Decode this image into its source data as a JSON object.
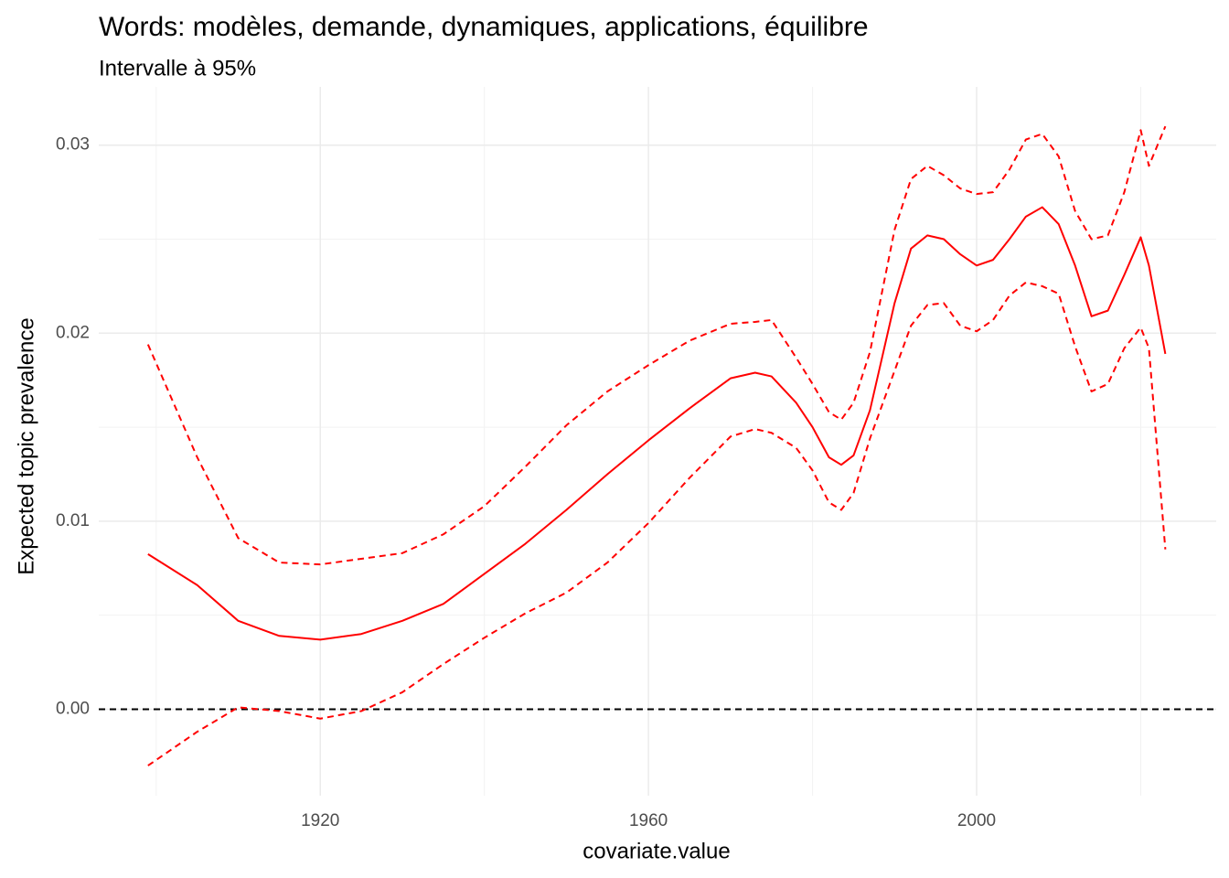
{
  "chart_data": {
    "type": "line",
    "title": "Words: modèles, demande, dynamiques, applications, équilibre",
    "subtitle": "Intervalle à 95%",
    "x_label": "covariate.value",
    "y_label": "Expected topic prevalence",
    "x": [
      1899,
      1905,
      1910,
      1915,
      1920,
      1925,
      1930,
      1935,
      1940,
      1945,
      1950,
      1955,
      1960,
      1965,
      1970,
      1973,
      1975,
      1978,
      1980,
      1982,
      1983.5,
      1985,
      1987,
      1990,
      1992,
      1994,
      1996,
      1998,
      2000,
      2002,
      2004,
      2006,
      2008,
      2010,
      2012,
      2014,
      2016,
      2018,
      2020,
      2021,
      2023
    ],
    "series": [
      {
        "color": "#ff0000",
        "dashed": false,
        "values": [
          0.00825,
          0.0066,
          0.0047,
          0.0039,
          0.0037,
          0.004,
          0.0047,
          0.0056,
          0.0072,
          0.0088,
          0.0106,
          0.0125,
          0.0143,
          0.016,
          0.0176,
          0.0179,
          0.0177,
          0.0163,
          0.015,
          0.0134,
          0.013,
          0.0135,
          0.0159,
          0.0216,
          0.0245,
          0.0252,
          0.025,
          0.0242,
          0.0236,
          0.0239,
          0.025,
          0.0262,
          0.0267,
          0.0258,
          0.0236,
          0.0209,
          0.0212,
          0.0231,
          0.0251,
          0.0236,
          0.0189
        ]
      },
      {
        "color": "#ff0000",
        "dashed": true,
        "values": [
          0.0194,
          0.0134,
          0.0091,
          0.0078,
          0.0077,
          0.008,
          0.0083,
          0.0093,
          0.0108,
          0.0129,
          0.0151,
          0.0169,
          0.0183,
          0.0196,
          0.0205,
          0.0206,
          0.0207,
          0.0187,
          0.0173,
          0.0158,
          0.0154,
          0.0163,
          0.019,
          0.0255,
          0.0282,
          0.0289,
          0.0284,
          0.0277,
          0.0274,
          0.0275,
          0.0287,
          0.0303,
          0.0306,
          0.0294,
          0.0265,
          0.025,
          0.0252,
          0.0275,
          0.0308,
          0.0289,
          0.031
        ]
      },
      {
        "color": "#ff0000",
        "dashed": true,
        "values": [
          -0.003,
          -0.0012,
          0.0001,
          -0.0001,
          -0.0005,
          -0.0001,
          0.0009,
          0.0024,
          0.0038,
          0.0051,
          0.0062,
          0.0078,
          0.0099,
          0.0123,
          0.0145,
          0.0149,
          0.0147,
          0.0139,
          0.0127,
          0.011,
          0.0106,
          0.0115,
          0.0144,
          0.018,
          0.0204,
          0.0215,
          0.0216,
          0.0204,
          0.0201,
          0.0207,
          0.022,
          0.0227,
          0.0225,
          0.0221,
          0.0193,
          0.0169,
          0.0173,
          0.0192,
          0.0203,
          0.0192,
          0.0085
        ]
      }
    ],
    "hline": 0,
    "xlim": [
      1893,
      2029.2
    ],
    "ylim": [
      -0.0046,
      0.0331
    ],
    "xticks": [
      1920,
      1960,
      2000
    ],
    "xticks_minor": [
      1900,
      1940,
      1980,
      2020
    ],
    "yticks": [
      {
        "value": 0,
        "label": "0.00"
      },
      {
        "value": 0.01,
        "label": "0.01"
      },
      {
        "value": 0.02,
        "label": "0.02"
      },
      {
        "value": 0.03,
        "label": "0.03"
      }
    ],
    "yticks_minor": [
      0.005,
      0.015,
      0.025
    ],
    "grid": true
  }
}
